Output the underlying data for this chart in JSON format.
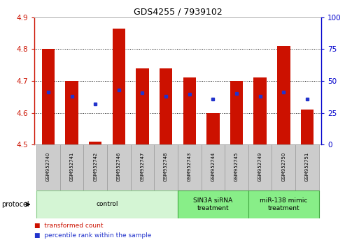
{
  "title": "GDS4255 / 7939102",
  "samples": [
    "GSM952740",
    "GSM952741",
    "GSM952742",
    "GSM952746",
    "GSM952747",
    "GSM952748",
    "GSM952743",
    "GSM952744",
    "GSM952745",
    "GSM952749",
    "GSM952750",
    "GSM952751"
  ],
  "bar_tops": [
    4.8,
    4.7,
    4.51,
    4.865,
    4.74,
    4.74,
    4.71,
    4.6,
    4.7,
    4.71,
    4.81,
    4.61
  ],
  "bar_bottoms": [
    4.5,
    4.5,
    4.5,
    4.5,
    4.5,
    4.5,
    4.5,
    4.5,
    4.5,
    4.5,
    4.5,
    4.5
  ],
  "dot_values": [
    4.665,
    4.652,
    4.628,
    4.671,
    4.663,
    4.651,
    4.659,
    4.642,
    4.66,
    4.652,
    4.665,
    4.642
  ],
  "bar_color": "#cc1100",
  "dot_color": "#2233cc",
  "ylim": [
    4.5,
    4.9
  ],
  "yticks": [
    4.5,
    4.6,
    4.7,
    4.8,
    4.9
  ],
  "right_yticks": [
    0,
    25,
    50,
    75,
    100
  ],
  "right_ylim": [
    0,
    100
  ],
  "groups": [
    {
      "label": "control",
      "start": 0,
      "end": 6,
      "color": "#d4f5d4",
      "edge_color": "#88cc88"
    },
    {
      "label": "SIN3A siRNA\ntreatment",
      "start": 6,
      "end": 9,
      "color": "#88ee88",
      "edge_color": "#44aa44"
    },
    {
      "label": "miR-138 mimic\ntreatment",
      "start": 9,
      "end": 12,
      "color": "#88ee88",
      "edge_color": "#44aa44"
    }
  ],
  "ylabel_left_color": "#cc1100",
  "ylabel_right_color": "#0000cc",
  "grid_color": "#000000",
  "legend_items": [
    {
      "label": "transformed count",
      "color": "#cc1100"
    },
    {
      "label": "percentile rank within the sample",
      "color": "#2233cc"
    }
  ],
  "protocol_label": "protocol",
  "bar_width": 0.55
}
